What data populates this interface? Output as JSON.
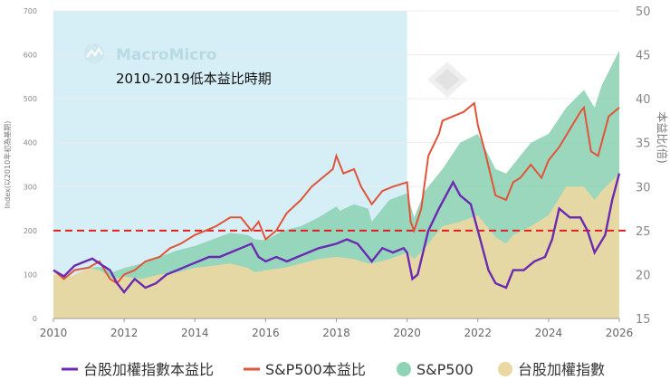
{
  "chart_data": {
    "type": "line",
    "annotation": "2010-2019低本益比時期",
    "watermark": "MacroMicro",
    "y_left_label": "Index(以2010年初為基期)",
    "y_right_label": "本益比(倍)",
    "y_left_range": [
      0,
      700
    ],
    "y_right_range": [
      15,
      50
    ],
    "y_left_ticks": [
      "0",
      "100",
      "200",
      "300",
      "400",
      "500",
      "600",
      "700"
    ],
    "y_right_ticks": [
      "15",
      "20",
      "25",
      "30",
      "35",
      "40",
      "45",
      "50"
    ],
    "x_range": [
      2010,
      2026
    ],
    "x_ticks": [
      "2010",
      "2012",
      "2014",
      "2016",
      "2018",
      "2020",
      "2022",
      "2024",
      "2026"
    ],
    "highlight_range": [
      2010,
      2020
    ],
    "reference_line_pe": 25,
    "colors": {
      "twse_pe": "#6a2bb0",
      "sp_pe": "#e0553a",
      "sp_index": "#8fd3b6",
      "twse_index": "#ead8a2",
      "highlight": "#d6eef6",
      "ref_line": "#e02020"
    },
    "legend": [
      "台股加權指數本益比",
      "S&P500本益比",
      "S&P500",
      "台股加權指數"
    ],
    "series": [
      {
        "name": "S&P500",
        "axis": "left",
        "x": [
          2010,
          2010.5,
          2011,
          2011.3,
          2011.7,
          2012,
          2012.5,
          2013,
          2013.5,
          2014,
          2014.5,
          2015,
          2015.5,
          2015.7,
          2016,
          2016.5,
          2017,
          2017.5,
          2018,
          2018.1,
          2018.5,
          2018.9,
          2019,
          2019.5,
          2020,
          2020.2,
          2020.5,
          2021,
          2021.5,
          2022,
          2022.5,
          2022.8,
          2023,
          2023.5,
          2024,
          2024.5,
          2025,
          2025.3,
          2025.5,
          2026
        ],
        "values": [
          100,
          95,
          115,
          118,
          106,
          115,
          125,
          140,
          155,
          165,
          180,
          195,
          190,
          180,
          178,
          200,
          210,
          230,
          255,
          245,
          260,
          250,
          220,
          270,
          285,
          230,
          290,
          340,
          400,
          420,
          340,
          330,
          350,
          400,
          420,
          480,
          520,
          480,
          530,
          610
        ]
      },
      {
        "name": "台股加權指數",
        "axis": "left",
        "x": [
          2010,
          2010.5,
          2011,
          2011.3,
          2011.7,
          2012,
          2012.5,
          2013,
          2013.5,
          2014,
          2014.5,
          2015,
          2015.5,
          2015.7,
          2016,
          2016.5,
          2017,
          2017.5,
          2018,
          2018.5,
          2018.9,
          2019,
          2019.5,
          2020,
          2020.2,
          2020.5,
          2021,
          2021.5,
          2022,
          2022.5,
          2022.8,
          2023,
          2023.5,
          2024,
          2024.5,
          2025,
          2025.3,
          2025.5,
          2026
        ],
        "values": [
          100,
          95,
          115,
          110,
          90,
          95,
          90,
          100,
          105,
          115,
          120,
          125,
          115,
          105,
          110,
          115,
          125,
          135,
          140,
          135,
          125,
          125,
          135,
          150,
          135,
          160,
          210,
          220,
          235,
          185,
          170,
          190,
          210,
          235,
          300,
          300,
          270,
          290,
          330
        ]
      },
      {
        "name": "S&P500本益比",
        "axis": "right",
        "x": [
          2010,
          2010.3,
          2010.6,
          2011,
          2011.3,
          2011.6,
          2011.8,
          2012,
          2012.3,
          2012.6,
          2013,
          2013.3,
          2013.6,
          2014,
          2014.3,
          2014.6,
          2015,
          2015.3,
          2015.6,
          2015.8,
          2016,
          2016.3,
          2016.6,
          2017,
          2017.3,
          2017.6,
          2017.9,
          2018,
          2018.2,
          2018.5,
          2018.7,
          2019,
          2019.3,
          2019.6,
          2020,
          2020.1,
          2020.2,
          2020.4,
          2020.6,
          2020.9,
          2021,
          2021.3,
          2021.6,
          2021.9,
          2022,
          2022.2,
          2022.5,
          2022.8,
          2023,
          2023.2,
          2023.5,
          2023.8,
          2024,
          2024.3,
          2024.6,
          2024.9,
          2025,
          2025.2,
          2025.4,
          2025.7,
          2026
        ],
        "values": [
          20.5,
          19.5,
          20.5,
          20.8,
          21.5,
          19.5,
          19.0,
          20.0,
          20.5,
          21.5,
          22.0,
          23.0,
          23.5,
          24.5,
          25.0,
          25.5,
          26.5,
          26.5,
          25.0,
          26.0,
          24.0,
          25.0,
          27.0,
          28.5,
          30.0,
          31.0,
          32.0,
          33.5,
          31.5,
          32.0,
          30.0,
          28.0,
          29.5,
          30.0,
          30.5,
          26.0,
          25.0,
          27.5,
          33.5,
          36.0,
          37.5,
          38.0,
          38.5,
          39.5,
          37.0,
          34.0,
          29.0,
          28.5,
          30.5,
          31.0,
          32.5,
          31.0,
          33.0,
          34.5,
          36.5,
          38.5,
          39.0,
          34.0,
          33.5,
          38.0,
          39.0
        ]
      },
      {
        "name": "台股加權指數本益比",
        "axis": "right",
        "x": [
          2010,
          2010.3,
          2010.6,
          2010.9,
          2011.1,
          2011.4,
          2011.6,
          2011.8,
          2012,
          2012.3,
          2012.6,
          2012.9,
          2013.2,
          2013.5,
          2013.8,
          2014.1,
          2014.4,
          2014.7,
          2015,
          2015.3,
          2015.6,
          2015.8,
          2016,
          2016.3,
          2016.6,
          2016.9,
          2017.2,
          2017.5,
          2017.8,
          2018,
          2018.3,
          2018.6,
          2018.9,
          2019,
          2019.3,
          2019.6,
          2019.9,
          2020,
          2020.15,
          2020.3,
          2020.6,
          2020.9,
          2021.1,
          2021.3,
          2021.5,
          2021.8,
          2022,
          2022.3,
          2022.5,
          2022.8,
          2023,
          2023.3,
          2023.6,
          2023.9,
          2024.1,
          2024.3,
          2024.6,
          2024.9,
          2025.1,
          2025.3,
          2025.6,
          2025.8,
          2026
        ],
        "values": [
          20.5,
          19.8,
          21.0,
          21.5,
          21.8,
          21.0,
          20.5,
          19.0,
          18.0,
          19.5,
          18.5,
          19.0,
          20.0,
          20.5,
          21.0,
          21.5,
          22.0,
          22.0,
          22.5,
          23.0,
          23.5,
          22.0,
          21.5,
          22.0,
          21.5,
          22.0,
          22.5,
          23.0,
          23.3,
          23.5,
          24.0,
          23.5,
          22.0,
          21.5,
          23.0,
          22.5,
          23.0,
          22.5,
          19.5,
          20.0,
          25.0,
          27.5,
          29.0,
          30.5,
          29.0,
          28.0,
          25.0,
          20.5,
          19.0,
          18.5,
          20.5,
          20.5,
          21.5,
          22.0,
          24.0,
          27.5,
          26.5,
          26.5,
          25.0,
          22.5,
          24.5,
          28.5,
          31.5
        ]
      }
    ]
  }
}
